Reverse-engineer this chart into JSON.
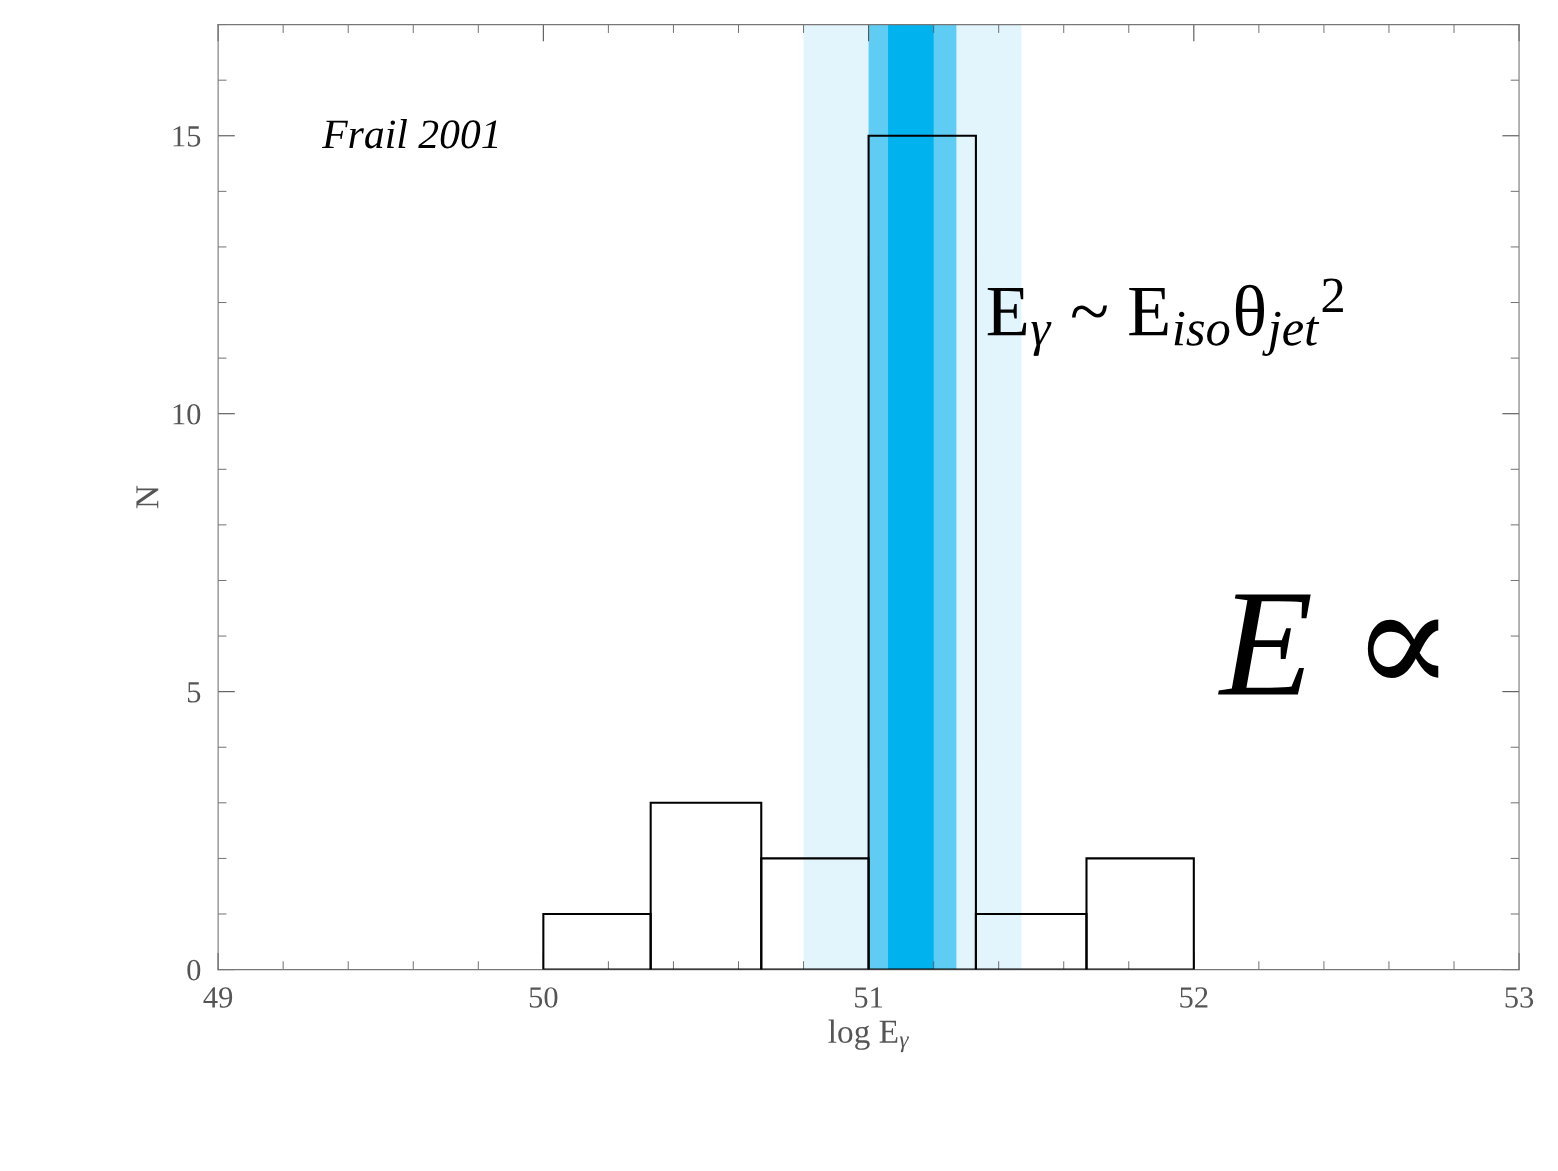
{
  "chart_data": {
    "type": "histogram",
    "xlabel": "log E$_{γ}$",
    "ylabel": "N",
    "bins": [
      50.0,
      50.33,
      50.67,
      51.0,
      51.33,
      51.67,
      52.0
    ],
    "values": [
      1,
      3,
      2,
      15,
      1,
      2
    ],
    "color": "#000000",
    "xlim": [
      49,
      53
    ],
    "ylim": [
      0,
      17
    ],
    "xticks": [
      49,
      50,
      51,
      52,
      53
    ],
    "yticks": [
      0,
      5,
      10,
      15
    ],
    "bands": [
      {
        "axis": "x",
        "from": 50.8,
        "to": 51.47,
        "color": "#e2f5fd"
      },
      {
        "axis": "x",
        "from": 51.0,
        "to": 51.27,
        "color": "#5fcdf3"
      },
      {
        "axis": "x",
        "from": 51.06,
        "to": 51.2,
        "color": "#00b2ee"
      }
    ],
    "annotations": [
      "Frail 2001",
      "E$_{γ}$ ~ E$_{iso}$θ$_{jet}$$^{2}$",
      "E ∝"
    ],
    "grid": false
  }
}
